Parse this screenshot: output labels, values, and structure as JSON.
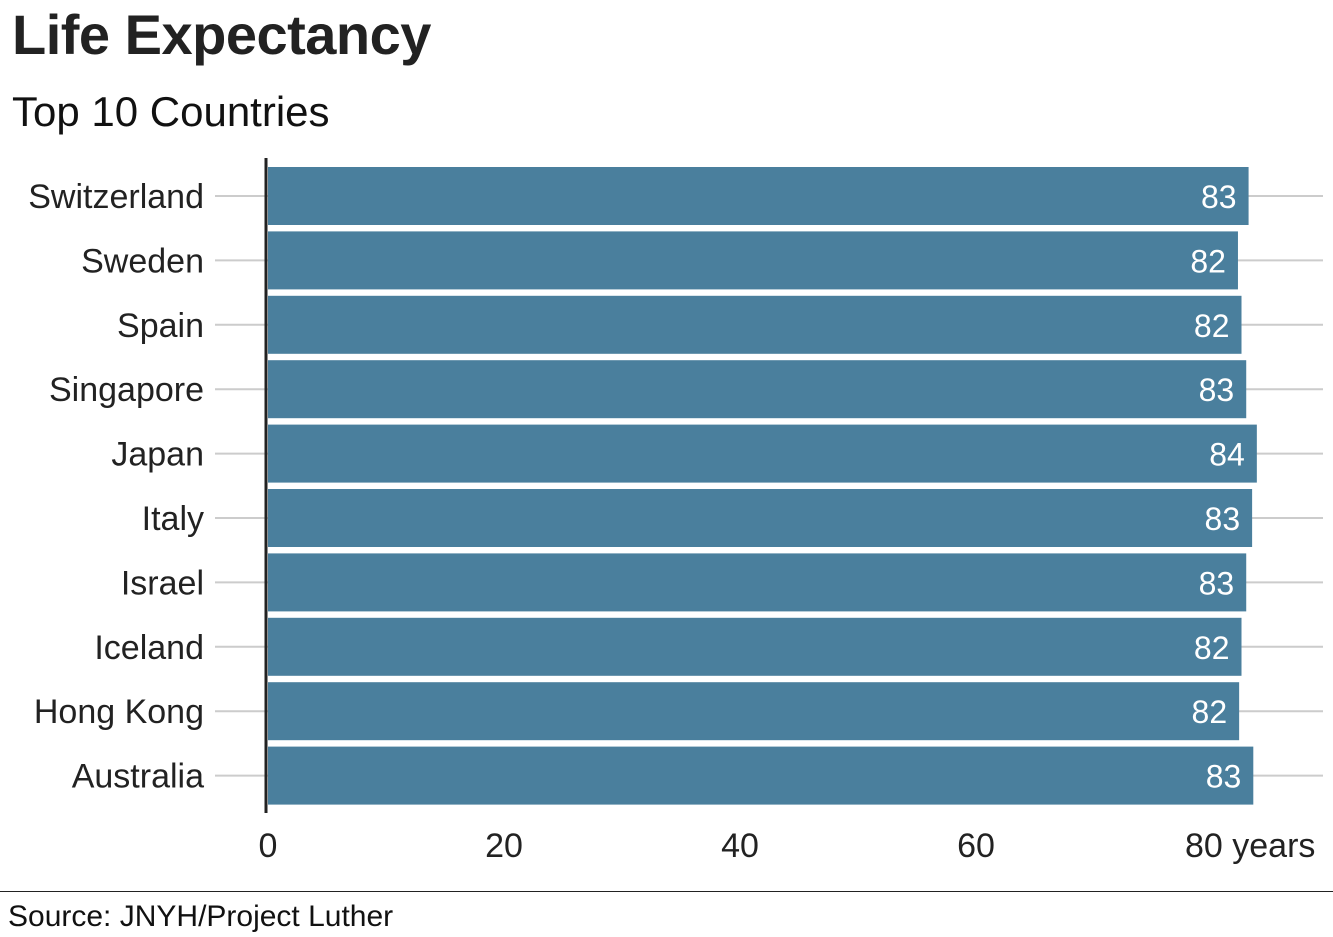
{
  "chart_data": {
    "type": "bar",
    "orientation": "horizontal",
    "title": "Life Expectancy",
    "subtitle": "Top 10 Countries",
    "categories": [
      "Switzerland",
      "Sweden",
      "Spain",
      "Singapore",
      "Japan",
      "Italy",
      "Israel",
      "Iceland",
      "Hong Kong",
      "Australia"
    ],
    "values": [
      83.1,
      82.2,
      82.5,
      82.9,
      83.8,
      83.4,
      82.9,
      82.5,
      82.3,
      83.5
    ],
    "value_labels": [
      "83",
      "82",
      "82",
      "83",
      "84",
      "83",
      "83",
      "82",
      "82",
      "83"
    ],
    "xlim": [
      0,
      90
    ],
    "x_ticks": [
      0,
      20,
      40,
      60,
      80
    ],
    "x_tick_labels": [
      "0",
      "20",
      "40",
      "60",
      "80 years"
    ],
    "grid": true,
    "bar_color": "#4a7f9d",
    "source": "Source: JNYH/Project Luther"
  }
}
